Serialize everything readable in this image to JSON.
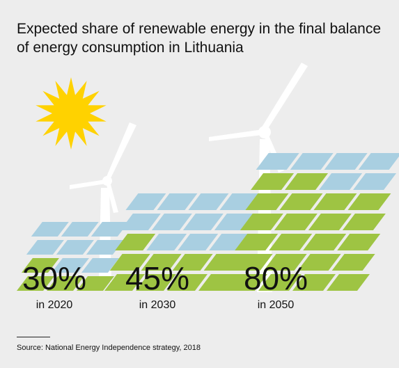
{
  "title": "Expected share of renewable energy in the final balance of energy consumption in Lithuania",
  "source": "Source: National Energy Independence strategy, 2018",
  "colors": {
    "background": "#ededed",
    "panel_blue": "#a9cfe1",
    "panel_green": "#9ec443",
    "sun": "#ffd200",
    "turbine": "#ffffff"
  },
  "icons": [
    "sun-icon",
    "wind-turbine-icon",
    "solar-panel-icon"
  ],
  "chart_data": {
    "type": "bar",
    "unit": "%",
    "categories": [
      "in 2020",
      "in 2030",
      "in 2050"
    ],
    "values": [
      30,
      45,
      80
    ],
    "labels": [
      "30%",
      "45%",
      "80%"
    ],
    "ylim": [
      0,
      100
    ]
  }
}
